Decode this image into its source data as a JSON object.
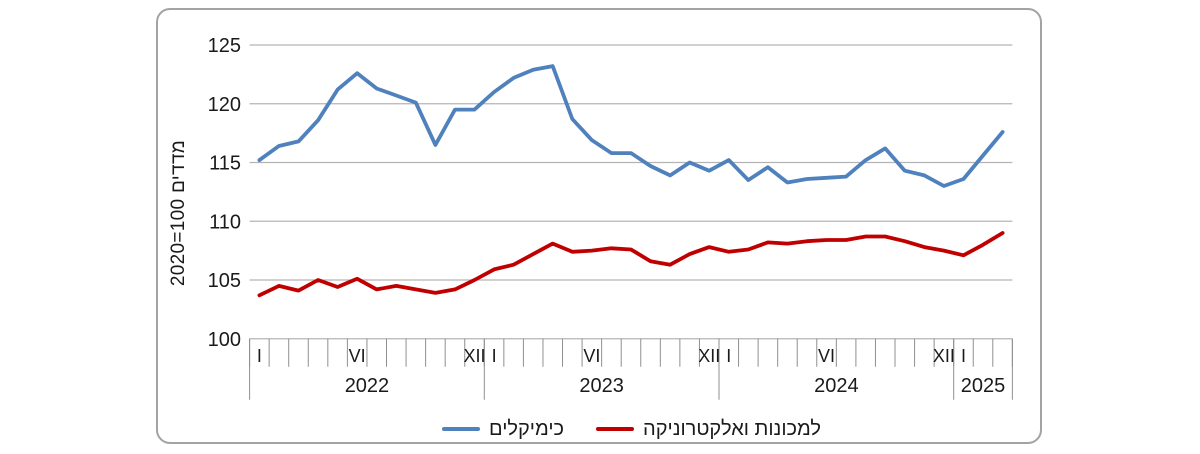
{
  "chart_data": {
    "type": "line",
    "title": "",
    "ylabel": {
      "top": "מדדים",
      "bottom": "2020=100"
    },
    "y_ticks": [
      100,
      105,
      110,
      115,
      120,
      125
    ],
    "ylim": [
      100,
      125
    ],
    "x_unit": "month",
    "x_range": "2022-01 to 2025-03",
    "months_total": 39,
    "x_month_labels": [
      {
        "index": 0,
        "label": "I"
      },
      {
        "index": 5,
        "label": "VI"
      },
      {
        "index": 11,
        "label": "XII"
      },
      {
        "index": 12,
        "label": "I"
      },
      {
        "index": 17,
        "label": "VI"
      },
      {
        "index": 23,
        "label": "XII"
      },
      {
        "index": 24,
        "label": "I"
      },
      {
        "index": 29,
        "label": "VI"
      },
      {
        "index": 35,
        "label": "XII"
      },
      {
        "index": 36,
        "label": "I"
      }
    ],
    "years": [
      {
        "label": "2022",
        "start_month": 0,
        "end_month": 12
      },
      {
        "label": "2023",
        "start_month": 12,
        "end_month": 24
      },
      {
        "label": "2024",
        "start_month": 24,
        "end_month": 36
      },
      {
        "label": "2025",
        "start_month": 36,
        "end_month": 39
      }
    ],
    "grid": true,
    "legend_position": "bottom",
    "series": [
      {
        "name": "כימיקלים",
        "color": "#4f81bd",
        "values": [
          115.2,
          116.4,
          116.8,
          118.6,
          121.2,
          122.6,
          121.3,
          120.7,
          120.1,
          116.5,
          119.5,
          119.5,
          121.0,
          122.2,
          122.9,
          123.2,
          118.7,
          116.9,
          115.8,
          115.8,
          114.7,
          113.9,
          115.0,
          114.3,
          115.2,
          113.5,
          114.6,
          113.3,
          113.6,
          113.7,
          113.8,
          115.2,
          116.2,
          114.3,
          113.9,
          113.0,
          113.6,
          115.6,
          117.6
        ]
      },
      {
        "name": "למכונות ואלקטרוניקה",
        "color": "#c00000",
        "values": [
          103.7,
          104.5,
          104.1,
          105.0,
          104.4,
          105.1,
          104.2,
          104.5,
          104.2,
          103.9,
          104.2,
          105.0,
          105.9,
          106.3,
          107.2,
          108.1,
          107.4,
          107.5,
          107.7,
          107.6,
          106.6,
          106.3,
          107.2,
          107.8,
          107.4,
          107.6,
          108.2,
          108.1,
          108.3,
          108.4,
          108.4,
          108.7,
          108.7,
          108.3,
          107.8,
          107.5,
          107.1,
          108.0,
          109.0
        ]
      }
    ]
  }
}
